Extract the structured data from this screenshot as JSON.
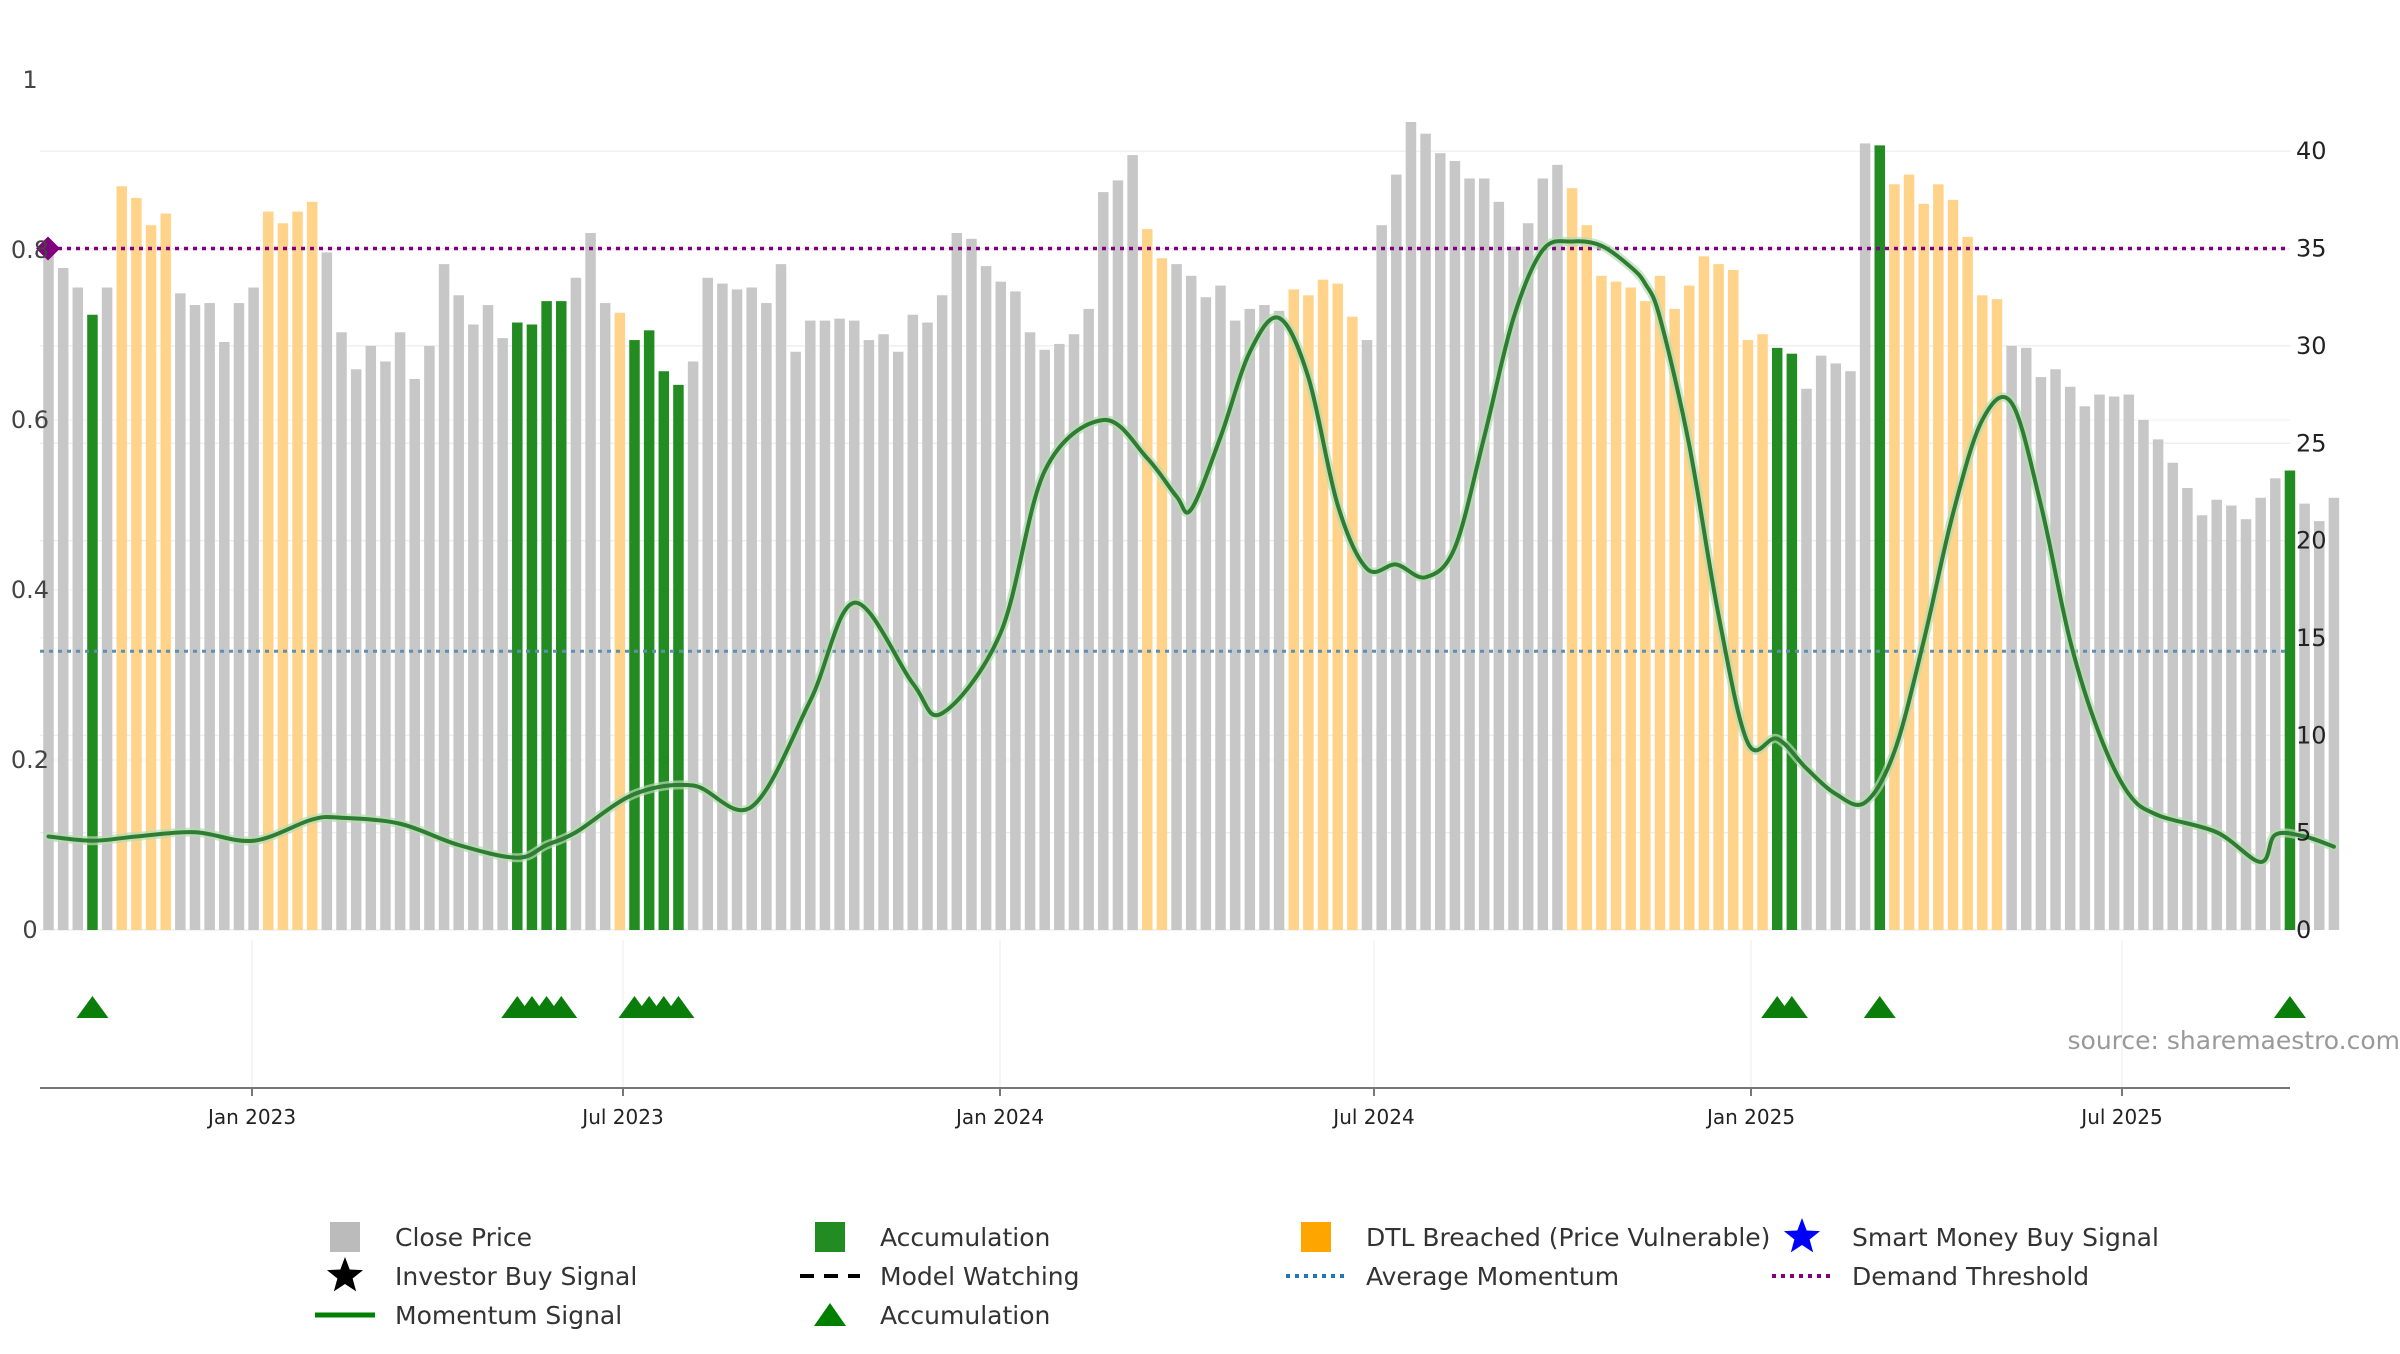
{
  "chart_data": {
    "type": "bar",
    "source": "source: sharemaestro.com",
    "x_tick_labels": [
      "Jan 2023",
      "Jul 2023",
      "Jan 2024",
      "Jul 2024",
      "Jan 2025",
      "Jul 2025"
    ],
    "y_left_ticks": [
      "0",
      "0.2",
      "0.4",
      "0.6",
      "0.8",
      "1"
    ],
    "y_left_range": [
      0,
      1
    ],
    "y_right_ticks": [
      "0",
      "5",
      "10",
      "15",
      "20",
      "25",
      "30",
      "35",
      "40"
    ],
    "y_right_range": [
      0,
      41.5
    ],
    "legend": [
      {
        "label": "Close Price",
        "marker": "square",
        "color": "#bbbbbb"
      },
      {
        "label": "Accumulation",
        "marker": "square",
        "color": "#228b22"
      },
      {
        "label": "DTL Breached (Price Vulnerable)",
        "marker": "square",
        "color": "#ffa500"
      },
      {
        "label": "Smart Money Buy Signal",
        "marker": "star",
        "color": "#0000ff"
      },
      {
        "label": "Investor Buy Signal",
        "marker": "star",
        "color": "#000000"
      },
      {
        "label": "Model Watching",
        "marker": "dash",
        "color": "#000000"
      },
      {
        "label": "Average Momentum",
        "marker": "dot",
        "color": "#1f77b4"
      },
      {
        "label": "Demand Threshold",
        "marker": "dot",
        "color": "#800080"
      },
      {
        "label": "Momentum Signal",
        "marker": "line",
        "color": "#008000"
      },
      {
        "label": "Accumulation",
        "marker": "triangle",
        "color": "#008000"
      }
    ],
    "demand_threshold": 0.8,
    "average_momentum": 0.325,
    "weeks_x_range": [
      -14,
      142
    ],
    "close_price": [
      35,
      34,
      33,
      31.6,
      33,
      38.2,
      37.6,
      36.2,
      36.8,
      32.7,
      32.1,
      32.2,
      30.2,
      32.2,
      33,
      36.9,
      36.3,
      36.9,
      37.4,
      34.8,
      30.7,
      28.8,
      30,
      29.2,
      30.7,
      28.3,
      30,
      34.2,
      32.6,
      31.1,
      32.1,
      30.4,
      31.2,
      31.1,
      32.3,
      32.3,
      33.5,
      35.8,
      32.2,
      31.7,
      30.3,
      30.8,
      28.7,
      28,
      29.2,
      33.5,
      33.2,
      32.9,
      33,
      32.2,
      34.2,
      29.7,
      31.3,
      31.3,
      31.4,
      31.3,
      30.3,
      30.6,
      29.7,
      31.6,
      31.2,
      32.6,
      35.8,
      35.5,
      34.1,
      33.3,
      32.8,
      30.7,
      29.8,
      30.1,
      30.6,
      31.9,
      37.9,
      38.5,
      39.8,
      36,
      34.5,
      34.2,
      33.6,
      32.5,
      33.1,
      31.3,
      31.9,
      32.1,
      31.8,
      32.9,
      32.6,
      33.4,
      33.2,
      31.5,
      30.3,
      36.2,
      38.8,
      41.5,
      40.9,
      39.9,
      39.5,
      38.6,
      38.6,
      37.4,
      35.1,
      36.3,
      38.6,
      39.3,
      38.1,
      36.2,
      33.6,
      33.3,
      33,
      32.3,
      33.6,
      31.9,
      33.1,
      34.6,
      34.2,
      33.9,
      30.3,
      30.6,
      29.9,
      29.6,
      27.8,
      29.5,
      29.1,
      28.7,
      40.4,
      40.3,
      38.3,
      38.8,
      37.3,
      38.3,
      37.5,
      35.6,
      32.6,
      32.4,
      30,
      29.9,
      28.4,
      28.8,
      27.9,
      26.9,
      27.5,
      27.4,
      27.5,
      26.2,
      25.2,
      24,
      22.7,
      21.3,
      22.1,
      21.8,
      21.1,
      22.2,
      23.2,
      23.6,
      21.9,
      21,
      22.2
    ],
    "accumulation_weeks": [
      -11,
      18,
      19,
      20,
      21,
      26,
      27,
      28,
      29,
      104,
      105,
      111,
      139
    ],
    "dtl_breached_weeks": [
      -9,
      -8,
      -7,
      -6,
      1,
      2,
      3,
      4,
      25,
      61,
      62,
      71,
      72,
      73,
      74,
      75,
      90,
      91,
      92,
      93,
      94,
      95,
      96,
      97,
      98,
      99,
      100,
      101,
      102,
      103,
      104,
      105,
      112,
      113,
      114,
      115,
      116,
      117,
      118,
      119
    ],
    "accumulation_triangles_weeks": [
      -11,
      18,
      19,
      20,
      21,
      26,
      27,
      28,
      29,
      104,
      105,
      111,
      139
    ],
    "momentum_signal": {
      "weeks": [
        -14,
        -11,
        -8,
        -4,
        0,
        4,
        6,
        10,
        14,
        18,
        20,
        22,
        26,
        30,
        34,
        38,
        41,
        45,
        47,
        51,
        54,
        58,
        61,
        63,
        64,
        66,
        68,
        70,
        72,
        74,
        76,
        78,
        80,
        82,
        84,
        86,
        88,
        90,
        92,
        94,
        95,
        96,
        98,
        100,
        102,
        104,
        106,
        108,
        110,
        112,
        114,
        116,
        118,
        120,
        122,
        124,
        126,
        128,
        130,
        134,
        137,
        138,
        140,
        142
      ],
      "values": [
        0.11,
        0.105,
        0.11,
        0.115,
        0.105,
        0.13,
        0.132,
        0.125,
        0.1,
        0.085,
        0.1,
        0.115,
        0.16,
        0.17,
        0.145,
        0.27,
        0.385,
        0.29,
        0.255,
        0.35,
        0.54,
        0.6,
        0.555,
        0.51,
        0.495,
        0.58,
        0.68,
        0.72,
        0.65,
        0.5,
        0.425,
        0.43,
        0.415,
        0.45,
        0.58,
        0.72,
        0.8,
        0.81,
        0.805,
        0.78,
        0.76,
        0.72,
        0.57,
        0.37,
        0.22,
        0.225,
        0.19,
        0.16,
        0.15,
        0.21,
        0.34,
        0.49,
        0.6,
        0.62,
        0.5,
        0.34,
        0.23,
        0.16,
        0.135,
        0.115,
        0.08,
        0.112,
        0.11,
        0.098
      ]
    }
  }
}
